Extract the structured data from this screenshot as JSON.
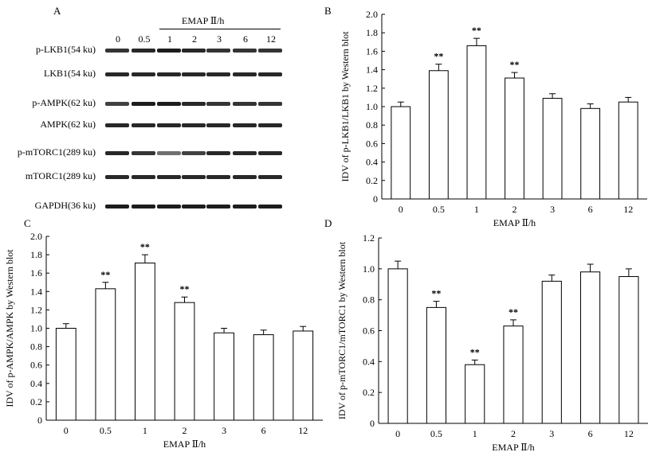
{
  "panels": {
    "a": "A",
    "b": "B",
    "c": "C",
    "d": "D"
  },
  "blot": {
    "emap_header": "EMAP Ⅱ/h",
    "lanes": [
      "0",
      "0.5",
      "1",
      "2",
      "3",
      "6",
      "12"
    ],
    "bands": [
      {
        "label": "p-LKB1(54 ku)",
        "intensity": [
          0.85,
          0.9,
          0.95,
          0.9,
          0.85,
          0.85,
          0.85
        ]
      },
      {
        "label": "LKB1(54 ku)",
        "intensity": [
          0.9,
          0.9,
          0.9,
          0.9,
          0.9,
          0.9,
          0.9
        ]
      },
      {
        "label": "p-AMPK(62 ku)",
        "intensity": [
          0.8,
          0.95,
          0.95,
          0.9,
          0.85,
          0.85,
          0.85
        ]
      },
      {
        "label": "AMPK(62 ku)",
        "intensity": [
          0.9,
          0.9,
          0.9,
          0.9,
          0.9,
          0.9,
          0.9
        ]
      },
      {
        "label": "p-mTORC1(289 ku)",
        "intensity": [
          0.9,
          0.85,
          0.6,
          0.8,
          0.9,
          0.9,
          0.9
        ]
      },
      {
        "label": "mTORC1(289 ku)",
        "intensity": [
          0.9,
          0.9,
          0.9,
          0.9,
          0.9,
          0.9,
          0.9
        ]
      },
      {
        "label": "GAPDH(36 ku)",
        "intensity": [
          0.95,
          0.95,
          0.95,
          0.95,
          0.95,
          0.95,
          0.95
        ]
      }
    ]
  },
  "chart_data": [
    {
      "panel": "B",
      "type": "bar",
      "categories": [
        "0",
        "0.5",
        "1",
        "2",
        "3",
        "6",
        "12"
      ],
      "values": [
        1.0,
        1.39,
        1.66,
        1.31,
        1.09,
        0.98,
        1.05
      ],
      "errors": [
        0.05,
        0.07,
        0.08,
        0.06,
        0.05,
        0.05,
        0.05
      ],
      "significance": [
        "",
        "**",
        "**",
        "**",
        "",
        "",
        ""
      ],
      "ylim": [
        0,
        2.0
      ],
      "yticks": [
        "0",
        "0.2",
        "0.4",
        "0.6",
        "0.8",
        "1.0",
        "1.2",
        "1.4",
        "1.6",
        "1.8",
        "2.0"
      ],
      "xlabel": "EMAP Ⅱ/h",
      "ylabel": "IDV of p-LKB1/LKB1 by Western blot"
    },
    {
      "panel": "C",
      "type": "bar",
      "categories": [
        "0",
        "0.5",
        "1",
        "2",
        "3",
        "6",
        "12"
      ],
      "values": [
        1.0,
        1.43,
        1.71,
        1.28,
        0.95,
        0.93,
        0.97
      ],
      "errors": [
        0.05,
        0.07,
        0.09,
        0.06,
        0.05,
        0.05,
        0.05
      ],
      "significance": [
        "",
        "**",
        "**",
        "**",
        "",
        "",
        ""
      ],
      "ylim": [
        0,
        2.0
      ],
      "yticks": [
        "0",
        "0.2",
        "0.4",
        "0.6",
        "0.8",
        "1.0",
        "1.2",
        "1.4",
        "1.6",
        "1.8",
        "2.0"
      ],
      "xlabel": "EMAP Ⅱ/h",
      "ylabel": "IDV of p-AMPK/AMPK by Western blot"
    },
    {
      "panel": "D",
      "type": "bar",
      "categories": [
        "0",
        "0.5",
        "1",
        "2",
        "3",
        "6",
        "12"
      ],
      "values": [
        1.0,
        0.75,
        0.38,
        0.63,
        0.92,
        0.98,
        0.95
      ],
      "errors": [
        0.05,
        0.04,
        0.03,
        0.04,
        0.04,
        0.05,
        0.05
      ],
      "significance": [
        "",
        "**",
        "**",
        "**",
        "",
        "",
        ""
      ],
      "ylim": [
        0,
        1.2
      ],
      "yticks": [
        "0",
        "0.2",
        "0.4",
        "0.6",
        "0.8",
        "1.0",
        "1.2"
      ],
      "xlabel": "EMAP Ⅱ/h",
      "ylabel": "IDV of p-mTORC1/mTORC1 by Western blot"
    }
  ]
}
